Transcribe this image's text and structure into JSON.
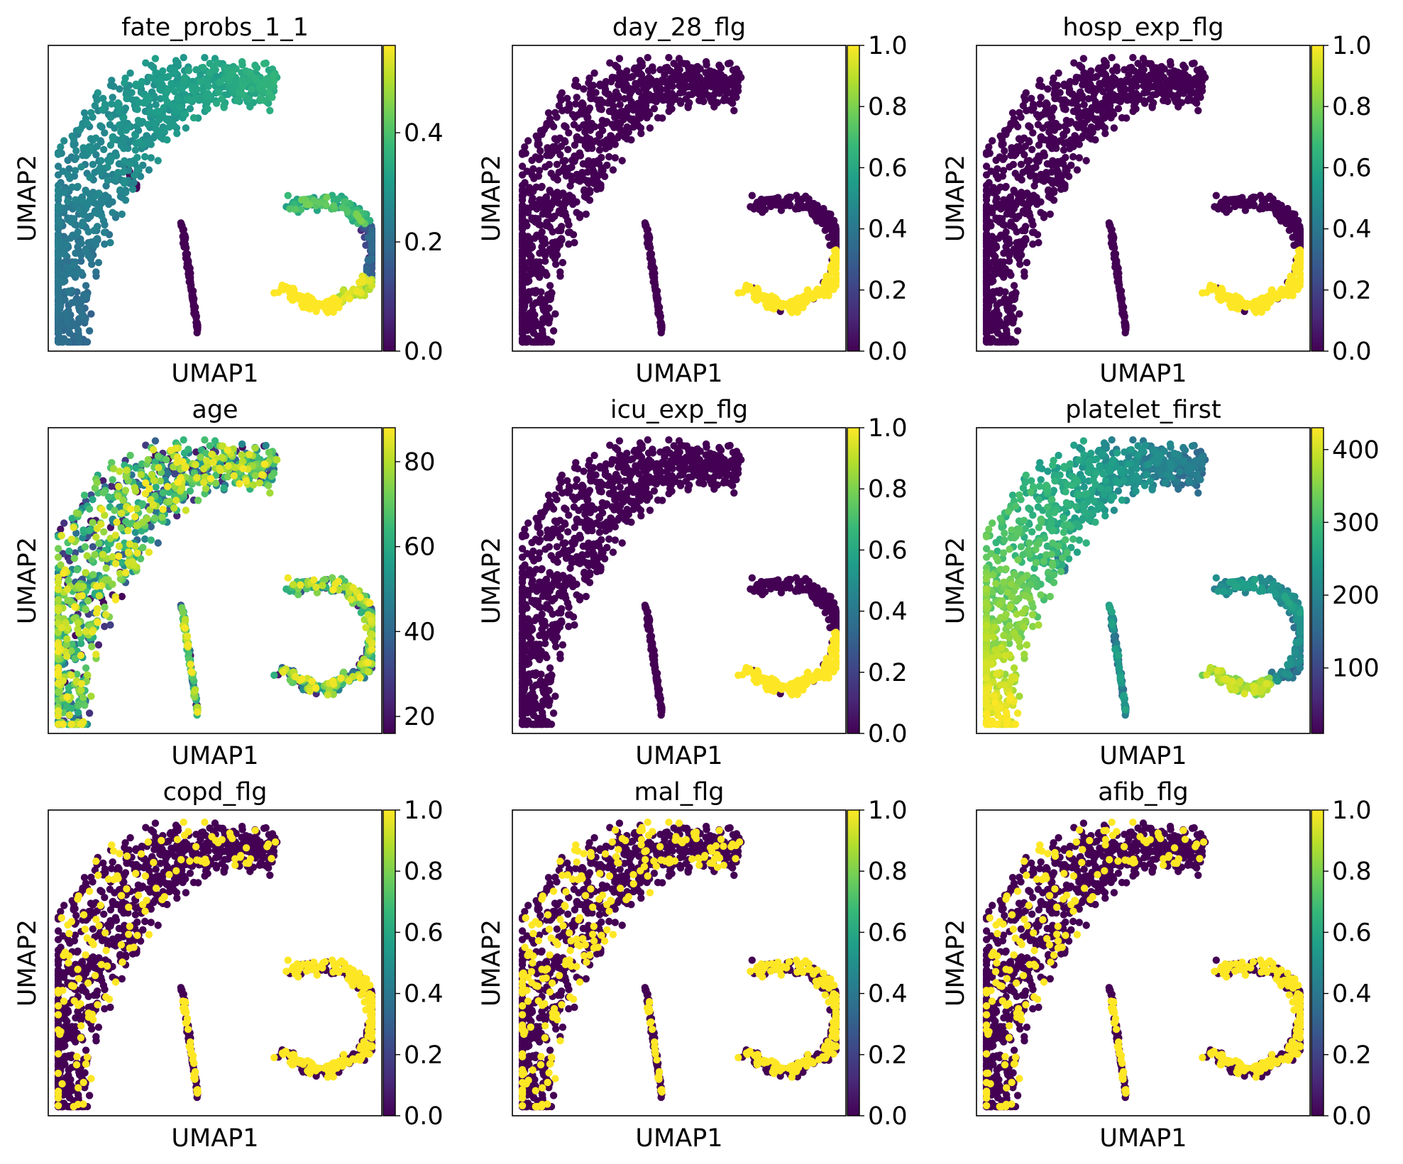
{
  "figure": {
    "panel_xlabel": "UMAP1",
    "panel_ylabel": "UMAP2"
  },
  "chart_data": [
    {
      "type": "scatter",
      "title": "fate_probs_1_1",
      "xlabel": "UMAP1",
      "ylabel": "UMAP2",
      "colormap": "viridis",
      "colorbar_range": [
        0.0,
        0.56
      ],
      "colorbar_ticks": [
        "0.0",
        "0.2",
        "0.4"
      ],
      "colorbar_tick_values": [
        0.0,
        0.2,
        0.4
      ],
      "pattern": "fate"
    },
    {
      "type": "scatter",
      "title": "day_28_flg",
      "xlabel": "UMAP1",
      "ylabel": "UMAP2",
      "colormap": "viridis",
      "colorbar_range": [
        0.0,
        1.0
      ],
      "colorbar_ticks": [
        "0.0",
        "0.2",
        "0.4",
        "0.6",
        "0.8",
        "1.0"
      ],
      "colorbar_tick_values": [
        0.0,
        0.2,
        0.4,
        0.6,
        0.8,
        1.0
      ],
      "pattern": "flag_arc"
    },
    {
      "type": "scatter",
      "title": "hosp_exp_flg",
      "xlabel": "UMAP1",
      "ylabel": "UMAP2",
      "colormap": "viridis",
      "colorbar_range": [
        0.0,
        1.0
      ],
      "colorbar_ticks": [
        "0.0",
        "0.2",
        "0.4",
        "0.6",
        "0.8",
        "1.0"
      ],
      "colorbar_tick_values": [
        0.0,
        0.2,
        0.4,
        0.6,
        0.8,
        1.0
      ],
      "pattern": "flag_arc"
    },
    {
      "type": "scatter",
      "title": "age",
      "xlabel": "UMAP1",
      "ylabel": "UMAP2",
      "colormap": "viridis",
      "colorbar_range": [
        16,
        88
      ],
      "colorbar_ticks": [
        "20",
        "40",
        "60",
        "80"
      ],
      "colorbar_tick_values": [
        20,
        40,
        60,
        80
      ],
      "pattern": "age"
    },
    {
      "type": "scatter",
      "title": "icu_exp_flg",
      "xlabel": "UMAP1",
      "ylabel": "UMAP2",
      "colormap": "viridis",
      "colorbar_range": [
        0.0,
        1.0
      ],
      "colorbar_ticks": [
        "0.0",
        "0.2",
        "0.4",
        "0.6",
        "0.8",
        "1.0"
      ],
      "colorbar_tick_values": [
        0.0,
        0.2,
        0.4,
        0.6,
        0.8,
        1.0
      ],
      "pattern": "flag_arc"
    },
    {
      "type": "scatter",
      "title": "platelet_first",
      "xlabel": "UMAP1",
      "ylabel": "UMAP2",
      "colormap": "viridis",
      "colorbar_range": [
        10,
        430
      ],
      "colorbar_ticks": [
        "100",
        "200",
        "300",
        "400"
      ],
      "colorbar_tick_values": [
        100,
        200,
        300,
        400
      ],
      "pattern": "platelet"
    },
    {
      "type": "scatter",
      "title": "copd_flg",
      "xlabel": "UMAP1",
      "ylabel": "UMAP2",
      "colormap": "viridis",
      "colorbar_range": [
        0.0,
        1.0
      ],
      "colorbar_ticks": [
        "0.0",
        "0.2",
        "0.4",
        "0.6",
        "0.8",
        "1.0"
      ],
      "colorbar_tick_values": [
        0.0,
        0.2,
        0.4,
        0.6,
        0.8,
        1.0
      ],
      "pattern": "sparse_flag_hi"
    },
    {
      "type": "scatter",
      "title": "mal_flg",
      "xlabel": "UMAP1",
      "ylabel": "UMAP2",
      "colormap": "viridis",
      "colorbar_range": [
        0.0,
        1.0
      ],
      "colorbar_ticks": [
        "0.0",
        "0.2",
        "0.4",
        "0.6",
        "0.8",
        "1.0"
      ],
      "colorbar_tick_values": [
        0.0,
        0.2,
        0.4,
        0.6,
        0.8,
        1.0
      ],
      "pattern": "sparse_flag_mid"
    },
    {
      "type": "scatter",
      "title": "afib_flg",
      "xlabel": "UMAP1",
      "ylabel": "UMAP2",
      "colormap": "viridis",
      "colorbar_range": [
        0.0,
        1.0
      ],
      "colorbar_ticks": [
        "0.0",
        "0.2",
        "0.4",
        "0.6",
        "0.8",
        "1.0"
      ],
      "colorbar_tick_values": [
        0.0,
        0.2,
        0.4,
        0.6,
        0.8,
        1.0
      ],
      "pattern": "sparse_flag_afib"
    }
  ]
}
